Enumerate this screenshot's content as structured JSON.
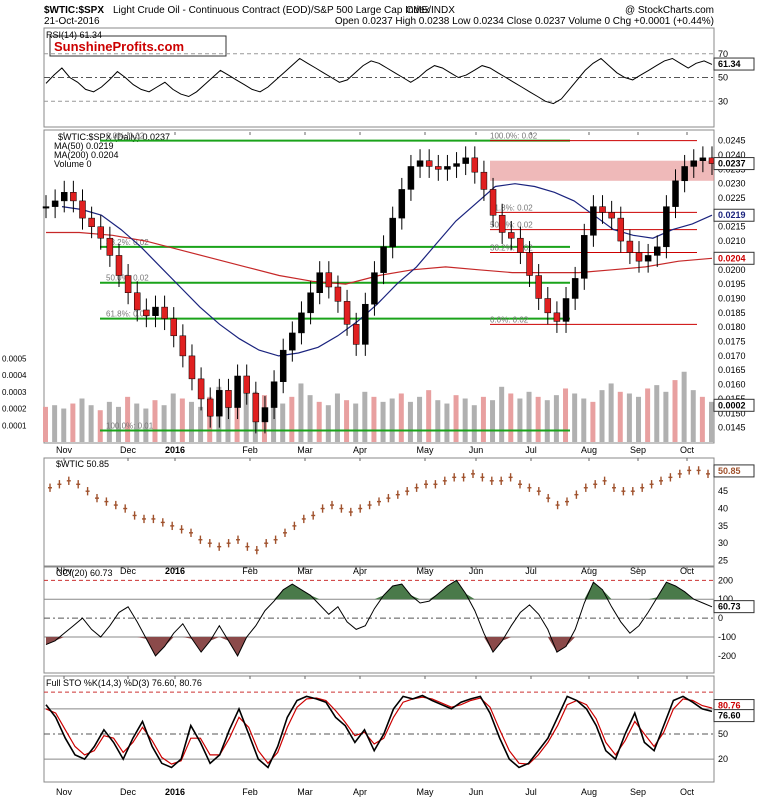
{
  "header": {
    "symbol": "$WTIC:$SPX",
    "description": "Light Crude Oil - Continuous Contract (EOD)/S&P 500 Large Cap Index",
    "exchange": "CME/INDX",
    "credit": "@ StockCharts.com",
    "date": "21-Oct-2016",
    "ohlc": "Open 0.0237  High 0.0238  Low 0.0234  Close 0.0237  Volume 0  Chg +0.0001 (+0.44%)"
  },
  "watermark": "SunshineProfits.com",
  "colors": {
    "green": "#1aa31a",
    "red": "#cc0000",
    "blue": "#1a237e",
    "ma200": "#c62828",
    "brown": "#a0522d",
    "osc_green": "#4a7a4a",
    "osc_red": "#8b4a4a"
  },
  "chart_data": [
    {
      "type": "line",
      "title": "RSI(14) 61.34",
      "last_value": "61.34",
      "y_ticks": [
        "70",
        "50",
        "30"
      ],
      "ylim": [
        10,
        90
      ],
      "levels": [
        70,
        30
      ],
      "values": [
        45,
        52,
        58,
        50,
        46,
        40,
        38,
        42,
        48,
        55,
        50,
        44,
        40,
        38,
        42,
        46,
        40,
        36,
        34,
        38,
        44,
        50,
        56,
        52,
        48,
        44,
        40,
        38,
        42,
        48,
        54,
        60,
        66,
        62,
        58,
        54,
        50,
        46,
        48,
        54,
        60,
        64,
        62,
        58,
        54,
        50,
        46,
        50,
        56,
        60,
        58,
        54,
        50,
        52,
        56,
        60,
        58,
        54,
        50,
        46,
        42,
        38,
        34,
        30,
        28,
        32,
        40,
        48,
        56,
        62,
        66,
        60,
        54,
        50,
        48,
        52,
        56,
        60,
        64,
        66,
        62,
        58,
        62,
        64,
        61
      ]
    },
    {
      "type": "line",
      "title": "$WTIC:$SPX (Daily) 0.0237",
      "legend": [
        "$WTIC:$SPX (Daily) 0.0237",
        "MA(50) 0.0219",
        "MA(200) 0.0204",
        "Volume 0"
      ],
      "x_labels": [
        "Nov",
        "Dec",
        "2016",
        "Feb",
        "Mar",
        "Apr",
        "May",
        "Jun",
        "Jul",
        "Aug",
        "Sep",
        "Oct"
      ],
      "y_ticks": [
        "0.0245",
        "0.0240",
        "0.0235",
        "0.0230",
        "0.0225",
        "0.0220",
        "0.0215",
        "0.0210",
        "0.0205",
        "0.0200",
        "0.0195",
        "0.0190",
        "0.0185",
        "0.0180",
        "0.0175",
        "0.0170",
        "0.0165",
        "0.0160",
        "0.0155",
        "0.0150",
        "0.0145"
      ],
      "vol_ticks": [
        "0.0005",
        "0.0004",
        "0.0003",
        "0.0002",
        "0.0001"
      ],
      "ylim": [
        0.014,
        0.0248
      ],
      "badges": {
        "close": "0.0237",
        "ma50": "0.0219",
        "ma200": "0.0204",
        "vol": "0.0002"
      },
      "price": [
        0.0222,
        0.0224,
        0.0227,
        0.0224,
        0.0218,
        0.0215,
        0.0211,
        0.0205,
        0.0198,
        0.0192,
        0.0186,
        0.0184,
        0.0187,
        0.0183,
        0.0177,
        0.017,
        0.0162,
        0.0155,
        0.0149,
        0.0158,
        0.0152,
        0.0163,
        0.0157,
        0.0147,
        0.0152,
        0.0161,
        0.0172,
        0.0178,
        0.0185,
        0.0192,
        0.0199,
        0.0194,
        0.0189,
        0.0181,
        0.0174,
        0.0188,
        0.0199,
        0.0208,
        0.0218,
        0.0228,
        0.0236,
        0.0238,
        0.0236,
        0.0235,
        0.0236,
        0.0237,
        0.0239,
        0.0234,
        0.0228,
        0.0219,
        0.0213,
        0.0211,
        0.0206,
        0.0198,
        0.019,
        0.0185,
        0.0182,
        0.019,
        0.0197,
        0.0212,
        0.0222,
        0.022,
        0.0218,
        0.021,
        0.0206,
        0.0203,
        0.0205,
        0.0208,
        0.0222,
        0.0231,
        0.0236,
        0.0238,
        0.0239,
        0.0237
      ],
      "ma50": [
        0.0222,
        0.0221,
        0.0219,
        0.0214,
        0.0208,
        0.0201,
        0.0194,
        0.0187,
        0.0181,
        0.0176,
        0.0172,
        0.017,
        0.0171,
        0.0173,
        0.0177,
        0.0182,
        0.0188,
        0.0195,
        0.0201,
        0.0209,
        0.0217,
        0.0223,
        0.0229,
        0.023,
        0.0229,
        0.0227,
        0.0224,
        0.0219,
        0.0214,
        0.0212,
        0.0211,
        0.0214,
        0.0216,
        0.0219
      ],
      "ma200": [
        0.0213,
        0.0213,
        0.0212,
        0.021,
        0.0207,
        0.0204,
        0.0201,
        0.0198,
        0.0196,
        0.0195,
        0.0198,
        0.02,
        0.0201,
        0.02,
        0.0199,
        0.0199,
        0.0199,
        0.02,
        0.0201,
        0.0203,
        0.0204
      ],
      "volume": [
        0.00021,
        0.00022,
        0.0002,
        0.00023,
        0.00026,
        0.00022,
        0.00019,
        0.00024,
        0.00021,
        0.00027,
        0.00023,
        0.0002,
        0.00025,
        0.00022,
        0.00029,
        0.00026,
        0.00024,
        0.00021,
        0.00027,
        0.00033,
        0.00025,
        0.00029,
        0.00034,
        0.0003,
        0.00028,
        0.00026,
        0.00023,
        0.00027,
        0.00035,
        0.00028,
        0.00024,
        0.00022,
        0.00029,
        0.00025,
        0.00023,
        0.0003,
        0.00027,
        0.00024,
        0.00026,
        0.00029,
        0.00024,
        0.00027,
        0.00031,
        0.00025,
        0.00023,
        0.00028,
        0.00026,
        0.00022,
        0.00027,
        0.00025,
        0.00033,
        0.00029,
        0.00026,
        0.0003,
        0.00027,
        0.00025,
        0.00028,
        0.00032,
        0.00029,
        0.00026,
        0.00024,
        0.00031,
        0.00035,
        0.0003,
        0.00029,
        0.00027,
        0.00032,
        0.00034,
        0.0003,
        0.00037,
        0.00042,
        0.00031,
        0.00027,
        0.00024
      ],
      "fib_left": [
        {
          "label": "0.0%: 0.02",
          "value": 0.0245
        },
        {
          "label": "38.2%: 0.02",
          "value": 0.0208
        },
        {
          "label": "50.0%: 0.02",
          "value": 0.01955
        },
        {
          "label": "61.8%: 0.02",
          "value": 0.0183
        },
        {
          "label": "100.0%: 0.01",
          "value": 0.0144
        }
      ],
      "fib_right": [
        {
          "label": "100.0%: 0.02",
          "value": 0.0245
        },
        {
          "label": "61.8%: 0.02",
          "value": 0.022
        },
        {
          "label": "50.0%: 0.02",
          "value": 0.0214
        },
        {
          "label": "38.2%: 0.02",
          "value": 0.0206
        },
        {
          "label": "0.0%: 0.02",
          "value": 0.0181
        }
      ],
      "resistance_zone": [
        0.0231,
        0.0238
      ]
    },
    {
      "type": "line",
      "title": "$WTIC 50.85",
      "last_value": "50.85",
      "y_ticks": [
        "50",
        "45",
        "40",
        "35",
        "30",
        "25"
      ],
      "ylim": [
        24,
        54
      ],
      "values": [
        46,
        47,
        48,
        47,
        45,
        43,
        42,
        41,
        40,
        38,
        37,
        37,
        36,
        35,
        34,
        33,
        31,
        30,
        29,
        30,
        31,
        29,
        28,
        30,
        31,
        33,
        35,
        37,
        38,
        40,
        41,
        40,
        39,
        40,
        41,
        42,
        43,
        44,
        45,
        46,
        47,
        47,
        48,
        49,
        49,
        50,
        49,
        48,
        48,
        49,
        47,
        46,
        45,
        43,
        41,
        42,
        44,
        46,
        47,
        48,
        46,
        45,
        45,
        46,
        47,
        48,
        49,
        50,
        51,
        51,
        50
      ]
    },
    {
      "type": "line",
      "title": "CCI(20) 60.73",
      "last_value": "60.73",
      "y_ticks": [
        "200",
        "100",
        "0",
        "-100",
        "-200"
      ],
      "ylim": [
        -280,
        260
      ],
      "levels": [
        200,
        100,
        0,
        -100
      ],
      "values": [
        -140,
        -120,
        -80,
        -40,
        0,
        -60,
        -100,
        -40,
        30,
        60,
        -20,
        -110,
        -200,
        -150,
        -80,
        -30,
        -110,
        -180,
        -120,
        -40,
        -120,
        -200,
        -100,
        -40,
        40,
        90,
        150,
        180,
        150,
        120,
        70,
        20,
        60,
        -20,
        -60,
        -40,
        50,
        120,
        170,
        180,
        120,
        80,
        90,
        130,
        170,
        200,
        130,
        40,
        -80,
        -180,
        -120,
        -40,
        30,
        70,
        20,
        -60,
        -180,
        -150,
        -60,
        80,
        190,
        150,
        60,
        -20,
        -80,
        -40,
        30,
        110,
        190,
        170,
        140,
        100,
        80,
        60
      ]
    },
    {
      "type": "line",
      "title": "Full STO %K(14,3) %D(3) 76.60, 80.76",
      "last_values": [
        "80.76",
        "76.60"
      ],
      "y_ticks": [
        "80",
        "50",
        "20"
      ],
      "ylim": [
        -5,
        105
      ],
      "levels": [
        80,
        50,
        20
      ],
      "k": [
        85,
        70,
        45,
        25,
        20,
        35,
        55,
        40,
        20,
        45,
        65,
        35,
        15,
        10,
        20,
        60,
        40,
        15,
        25,
        55,
        80,
        50,
        20,
        10,
        35,
        70,
        90,
        95,
        92,
        88,
        70,
        60,
        40,
        55,
        30,
        50,
        80,
        95,
        92,
        96,
        90,
        85,
        80,
        88,
        92,
        95,
        75,
        45,
        20,
        10,
        15,
        30,
        45,
        70,
        95,
        90,
        80,
        60,
        30,
        20,
        50,
        75,
        40,
        30,
        60,
        90,
        95,
        88,
        80,
        77
      ],
      "d": [
        80,
        75,
        55,
        35,
        25,
        30,
        48,
        45,
        28,
        40,
        58,
        42,
        22,
        14,
        18,
        45,
        45,
        25,
        25,
        45,
        70,
        58,
        30,
        15,
        28,
        58,
        82,
        92,
        93,
        90,
        78,
        64,
        48,
        52,
        38,
        45,
        70,
        88,
        92,
        94,
        92,
        87,
        82,
        85,
        90,
        93,
        82,
        55,
        30,
        15,
        14,
        25,
        40,
        60,
        85,
        90,
        85,
        68,
        40,
        25,
        42,
        65,
        50,
        35,
        52,
        80,
        92,
        90,
        84,
        81
      ]
    }
  ]
}
